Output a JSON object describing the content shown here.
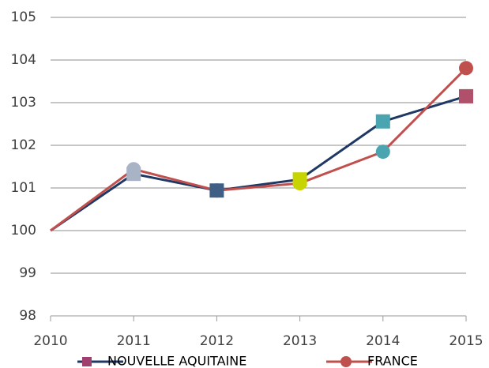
{
  "chart_data": {
    "type": "line",
    "x": [
      2010,
      2011,
      2012,
      2013,
      2014,
      2015
    ],
    "xlim": [
      2010,
      2015
    ],
    "xticks": [
      2010,
      2011,
      2012,
      2013,
      2014,
      2015
    ],
    "ylim": [
      98,
      105
    ],
    "yticks": [
      98,
      99,
      100,
      101,
      102,
      103,
      104,
      105
    ],
    "grid": true,
    "legend": "bottom",
    "series": [
      {
        "name": "NOUVELLE AQUITAINE",
        "color": "#1f3864",
        "marker": "square",
        "marker_color": "#a0406e",
        "values": [
          100,
          101.33,
          100.94,
          101.2,
          102.56,
          103.15
        ],
        "marker_colors": [
          null,
          "#a8b4c6",
          "#3f5f84",
          "#c8d400",
          "#4aa5b0",
          "#b0506a"
        ]
      },
      {
        "name": "FRANCE",
        "color": "#c0504d",
        "marker": "circle",
        "marker_color": "#c0504d",
        "values": [
          100,
          101.44,
          100.94,
          101.11,
          101.85,
          103.81
        ],
        "marker_colors": [
          null,
          "#a8b4c6",
          "#3f5f84",
          "#c8d400",
          "#4aa5b0",
          "#c0504d"
        ]
      }
    ]
  }
}
